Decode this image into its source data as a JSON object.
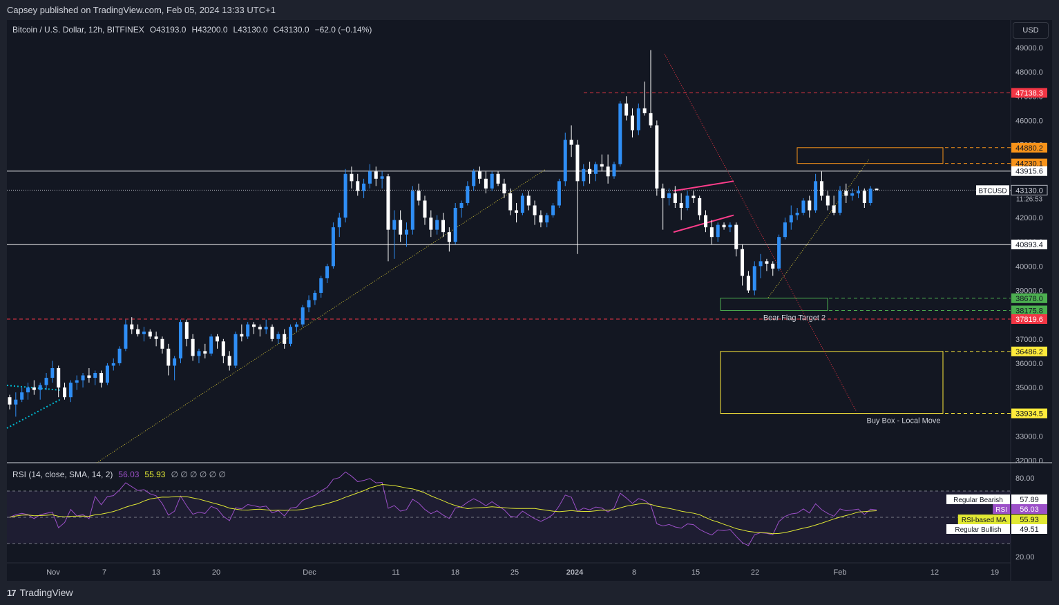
{
  "header": {
    "published": "Capsey published on TradingView.com, Feb 05, 2024 13:33 UTC+1",
    "symbol": "Bitcoin / U.S. Dollar, 12h, BITFINEX",
    "open": "O43193.0",
    "high": "H43200.0",
    "low": "L43130.0",
    "close": "C43130.0",
    "change": "−62.0 (−0.14%)"
  },
  "currency_button": "USD",
  "footer": {
    "brand": "TradingView"
  },
  "colors": {
    "background": "#131722",
    "up": "#2f8ef5",
    "down": "#ffffff",
    "red_level": "#f23645",
    "orange_level": "#f7931a",
    "green_level": "#4caf50",
    "yellow_level": "#ffeb3b",
    "rsi": "#9c50c8",
    "rsi_ma": "#e1e834",
    "pink": "#ff3d8b"
  },
  "chart_data": {
    "type": "candlestick",
    "title": "Bitcoin / U.S. Dollar, 12h, BITFINEX",
    "price_axis": {
      "ticks": [
        "49000.0",
        "48000.0",
        "47000.0",
        "46000.0",
        "45000.0",
        "44000.0",
        "42000.0",
        "41000.0",
        "40000.0",
        "39000.0",
        "37000.0",
        "36000.0",
        "35000.0",
        "34000.0",
        "33000.0",
        "32000.0"
      ],
      "range": [
        32000,
        49300
      ]
    },
    "time_axis": {
      "ticks": [
        "Nov",
        "7",
        "13",
        "20",
        "Dec",
        "11",
        "18",
        "25",
        "2024",
        "8",
        "15",
        "22",
        "Feb",
        "12",
        "19"
      ]
    },
    "candles_ohlc": [
      [
        34600,
        34700,
        34100,
        34300
      ],
      [
        34300,
        34800,
        33800,
        34500
      ],
      [
        34500,
        35000,
        34400,
        34800
      ],
      [
        34800,
        35200,
        34500,
        35000
      ],
      [
        35000,
        35300,
        34700,
        34900
      ],
      [
        34900,
        35200,
        34500,
        35100
      ],
      [
        35100,
        35600,
        34900,
        35400
      ],
      [
        35400,
        36100,
        35200,
        35800
      ],
      [
        35800,
        35900,
        34600,
        35000
      ],
      [
        35000,
        35200,
        34500,
        34600
      ],
      [
        34600,
        35300,
        34400,
        35200
      ],
      [
        35200,
        35500,
        34900,
        35300
      ],
      [
        35300,
        35600,
        35000,
        35500
      ],
      [
        35500,
        35800,
        35200,
        35400
      ],
      [
        35400,
        35700,
        35100,
        35600
      ],
      [
        35600,
        35700,
        35000,
        35200
      ],
      [
        35200,
        36000,
        35100,
        35900
      ],
      [
        35900,
        36200,
        35700,
        36000
      ],
      [
        36000,
        36700,
        35900,
        36600
      ],
      [
        36600,
        37800,
        36500,
        37600
      ],
      [
        37600,
        37900,
        37200,
        37400
      ],
      [
        37400,
        37600,
        37100,
        37200
      ],
      [
        37200,
        37500,
        36900,
        37300
      ],
      [
        37300,
        37400,
        37000,
        37100
      ],
      [
        37100,
        37300,
        36700,
        37000
      ],
      [
        37000,
        37100,
        36400,
        36600
      ],
      [
        36600,
        36800,
        35500,
        35900
      ],
      [
        35900,
        36300,
        35300,
        36200
      ],
      [
        36200,
        37800,
        36000,
        37700
      ],
      [
        37700,
        37800,
        36700,
        37000
      ],
      [
        37000,
        37200,
        36100,
        36300
      ],
      [
        36300,
        36600,
        36000,
        36500
      ],
      [
        36500,
        36800,
        36200,
        36400
      ],
      [
        36400,
        37200,
        36300,
        37100
      ],
      [
        37100,
        37200,
        36600,
        36900
      ],
      [
        36900,
        37000,
        36000,
        36300
      ],
      [
        36300,
        36500,
        35700,
        35900
      ],
      [
        35900,
        37300,
        35800,
        37200
      ],
      [
        37200,
        37600,
        36900,
        37100
      ],
      [
        37100,
        37700,
        37000,
        37600
      ],
      [
        37600,
        37700,
        37200,
        37500
      ],
      [
        37500,
        37600,
        37100,
        37400
      ],
      [
        37400,
        37800,
        37200,
        37500
      ],
      [
        37500,
        37600,
        36900,
        37000
      ],
      [
        37000,
        37300,
        36800,
        37200
      ],
      [
        37200,
        37400,
        36600,
        36800
      ],
      [
        36800,
        37600,
        36700,
        37500
      ],
      [
        37500,
        37700,
        37300,
        37600
      ],
      [
        37600,
        38400,
        37500,
        38300
      ],
      [
        38300,
        38800,
        38100,
        38600
      ],
      [
        38600,
        39000,
        38400,
        38900
      ],
      [
        38900,
        39600,
        38700,
        39500
      ],
      [
        39500,
        40100,
        39300,
        40000
      ],
      [
        40000,
        41800,
        39900,
        41600
      ],
      [
        41600,
        42200,
        41200,
        42000
      ],
      [
        42000,
        44000,
        41800,
        43800
      ],
      [
        43800,
        44100,
        43200,
        43500
      ],
      [
        43500,
        43800,
        42900,
        43100
      ],
      [
        43100,
        43600,
        42800,
        43400
      ],
      [
        43400,
        44200,
        43200,
        43900
      ],
      [
        43900,
        44100,
        43300,
        43600
      ],
      [
        43600,
        43900,
        43200,
        43700
      ],
      [
        43700,
        43800,
        40200,
        41500
      ],
      [
        41500,
        42300,
        40300,
        41900
      ],
      [
        41900,
        42300,
        41000,
        41300
      ],
      [
        41300,
        41800,
        40800,
        41500
      ],
      [
        41500,
        43300,
        41300,
        43100
      ],
      [
        43100,
        43400,
        42500,
        42700
      ],
      [
        42700,
        42900,
        41700,
        42000
      ],
      [
        42000,
        42300,
        41200,
        41500
      ],
      [
        41500,
        42100,
        41300,
        41900
      ],
      [
        41900,
        42200,
        41200,
        41400
      ],
      [
        41400,
        41600,
        40600,
        41000
      ],
      [
        41000,
        42600,
        40900,
        42400
      ],
      [
        42400,
        42700,
        42000,
        42600
      ],
      [
        42600,
        43500,
        42500,
        43300
      ],
      [
        43300,
        44000,
        43100,
        43900
      ],
      [
        43900,
        44100,
        43400,
        43600
      ],
      [
        43600,
        43900,
        43000,
        43200
      ],
      [
        43200,
        43900,
        43100,
        43800
      ],
      [
        43800,
        43900,
        43300,
        43400
      ],
      [
        43400,
        43600,
        42800,
        43000
      ],
      [
        43000,
        43200,
        42100,
        42300
      ],
      [
        42300,
        42600,
        41800,
        42200
      ],
      [
        42200,
        43000,
        42100,
        42900
      ],
      [
        42900,
        43100,
        42300,
        42500
      ],
      [
        42500,
        42700,
        41700,
        42100
      ],
      [
        42100,
        42300,
        41600,
        41800
      ],
      [
        41800,
        42200,
        41600,
        42100
      ],
      [
        42100,
        42600,
        42000,
        42500
      ],
      [
        42500,
        43600,
        42400,
        43500
      ],
      [
        43500,
        45500,
        43300,
        45200
      ],
      [
        45200,
        45800,
        44500,
        45000
      ],
      [
        45000,
        45200,
        40500,
        43500
      ],
      [
        43500,
        44200,
        43300,
        44000
      ],
      [
        44000,
        44300,
        43400,
        43800
      ],
      [
        43800,
        44300,
        43500,
        44200
      ],
      [
        44200,
        44600,
        43900,
        44100
      ],
      [
        44100,
        44600,
        43400,
        43700
      ],
      [
        43700,
        44300,
        43600,
        44200
      ],
      [
        44200,
        46800,
        44100,
        46700
      ],
      [
        46700,
        47000,
        46000,
        46200
      ],
      [
        46200,
        46500,
        45300,
        45600
      ],
      [
        45600,
        46700,
        45400,
        46500
      ],
      [
        46500,
        47600,
        46200,
        46300
      ],
      [
        46300,
        48900,
        45700,
        45800
      ],
      [
        45800,
        46000,
        42900,
        43200
      ],
      [
        43200,
        43400,
        41500,
        42800
      ],
      [
        42800,
        43200,
        42500,
        43000
      ],
      [
        43000,
        43300,
        42400,
        42600
      ],
      [
        42600,
        43000,
        41900,
        42400
      ],
      [
        42400,
        43100,
        42300,
        42900
      ],
      [
        42900,
        43100,
        42600,
        42800
      ],
      [
        42800,
        42900,
        41900,
        42100
      ],
      [
        42100,
        42300,
        41400,
        41600
      ],
      [
        41600,
        41900,
        40900,
        41200
      ],
      [
        41200,
        41800,
        41000,
        41700
      ],
      [
        41700,
        41800,
        41500,
        41600
      ],
      [
        41600,
        41800,
        41400,
        41700
      ],
      [
        41700,
        41800,
        40400,
        40700
      ],
      [
        40700,
        40900,
        39200,
        39600
      ],
      [
        39600,
        39800,
        38900,
        39000
      ],
      [
        39000,
        40200,
        38800,
        40000
      ],
      [
        40000,
        40500,
        39500,
        40200
      ],
      [
        40200,
        40300,
        39800,
        40100
      ],
      [
        40100,
        40200,
        39600,
        39900
      ],
      [
        39900,
        41300,
        39800,
        41200
      ],
      [
        41200,
        42000,
        41100,
        41800
      ],
      [
        41800,
        42500,
        41500,
        42100
      ],
      [
        42100,
        42400,
        41900,
        42200
      ],
      [
        42200,
        42800,
        42100,
        42700
      ],
      [
        42700,
        42900,
        42000,
        42300
      ],
      [
        42300,
        43800,
        42200,
        43500
      ],
      [
        43500,
        43900,
        42700,
        42900
      ],
      [
        42900,
        43100,
        42300,
        42500
      ],
      [
        42500,
        42900,
        42100,
        42200
      ],
      [
        42200,
        43300,
        42100,
        43100
      ],
      [
        43100,
        43400,
        42600,
        42900
      ],
      [
        42900,
        43200,
        42700,
        43000
      ],
      [
        43000,
        43300,
        42800,
        43100
      ],
      [
        43100,
        43200,
        42400,
        42600
      ],
      [
        42600,
        43300,
        42500,
        43193
      ],
      [
        43193,
        43200,
        43130,
        43130
      ]
    ],
    "horizontal_levels": [
      {
        "price": "47138.3",
        "style": "red-dashed"
      },
      {
        "price": "44880.2",
        "style": "orange-dashed"
      },
      {
        "price": "44230.1",
        "style": "orange-dashed"
      },
      {
        "price": "43915.6",
        "style": "white-solid"
      },
      {
        "price": "43130.0",
        "style": "current-dotted",
        "label": "BTCUSD",
        "timer": "11:26:53"
      },
      {
        "price": "40893.4",
        "style": "white-solid"
      },
      {
        "price": "38678.0",
        "style": "green-dashed"
      },
      {
        "price": "38175.8",
        "style": "green-dashed"
      },
      {
        "price": "37819.6",
        "style": "red-dashed"
      },
      {
        "price": "36486.2",
        "style": "yellow-dashed"
      },
      {
        "price": "33934.5",
        "style": "yellow-dashed"
      }
    ],
    "annotations": [
      "Bear Flag Target 2",
      "Buy Box - Local Move"
    ]
  },
  "rsi": {
    "title": "RSI (14, close, SMA, 14, 2)",
    "rsi_value": "56.03",
    "ma_value": "55.93",
    "extras": "∅ ∅ ∅ ∅ ∅ ∅",
    "axis_ticks": [
      "80.00",
      "20.00"
    ],
    "labels": [
      {
        "name": "Regular Bearish",
        "value": "57.89"
      },
      {
        "name": "RSI",
        "value": "56.03"
      },
      {
        "name": "RSI-based MA",
        "value": "55.93"
      },
      {
        "name": "Regular Bullish",
        "value": "49.51"
      }
    ]
  }
}
